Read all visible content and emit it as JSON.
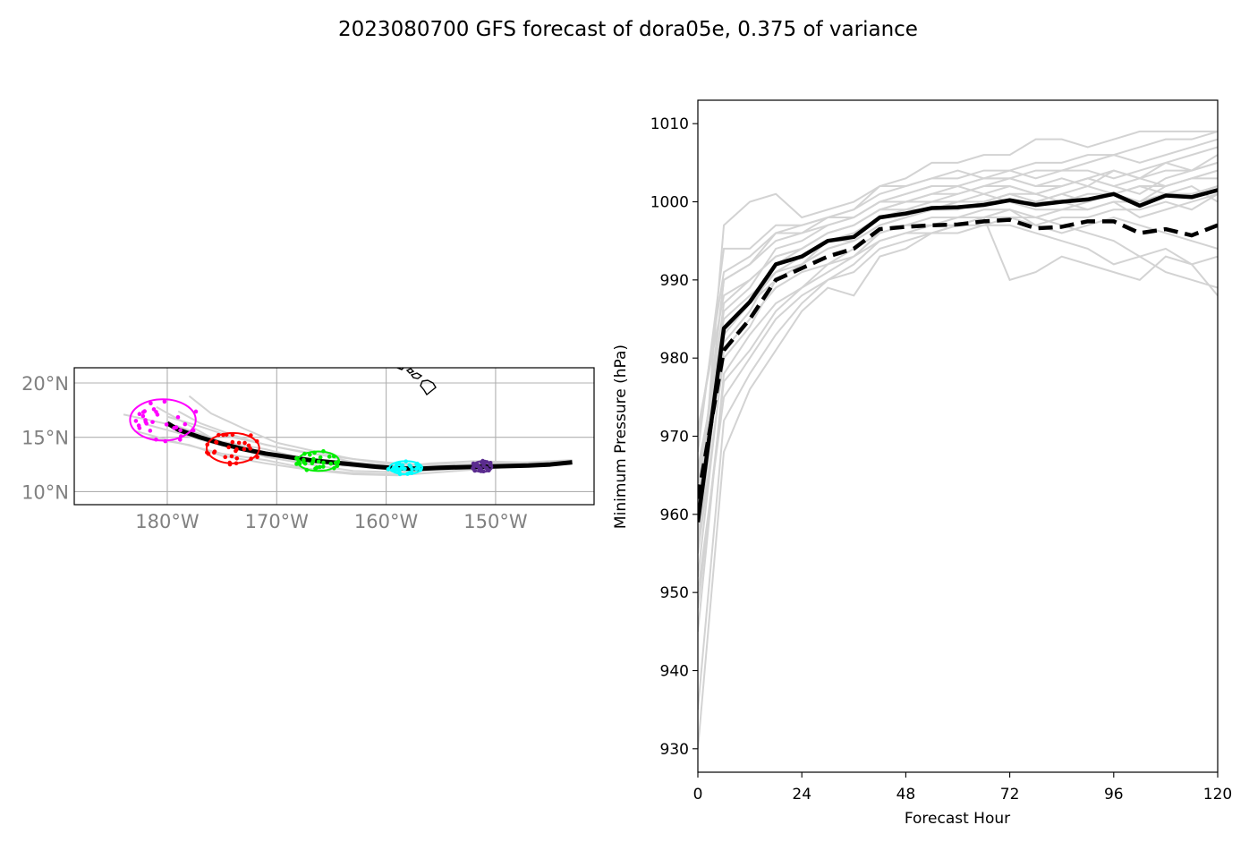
{
  "title": "2023080700 GFS forecast of dora05e, 0.375 of variance",
  "colors": {
    "ensemble": "#d3d3d3",
    "mean": "#000000",
    "grid": "#b0b0b0",
    "map_tick_text": "#808080",
    "coast": "#000000",
    "hour0": "#ff00ff",
    "hour24": "#ff0000",
    "hour48": "#00ee00",
    "hour72": "#00ffff",
    "hour96": "#5b2c8f"
  },
  "chart_data": [
    {
      "type": "scatter",
      "panel": "track map",
      "xlabel": "",
      "ylabel": "",
      "xlim": [
        -188.5,
        -141
      ],
      "ylim": [
        8.8,
        21.4
      ],
      "xticks": [
        -180,
        -170,
        -160,
        -150
      ],
      "xtick_labels": [
        "180°W",
        "170°W",
        "160°W",
        "150°W"
      ],
      "yticks": [
        10,
        15,
        20
      ],
      "ytick_labels": [
        "10°N",
        "15°N",
        "20°N"
      ],
      "grid": true,
      "mean_track": {
        "lon": [
          -143,
          -145,
          -147,
          -149,
          -151,
          -153,
          -155,
          -157,
          -159,
          -161,
          -163,
          -165,
          -167,
          -169,
          -171,
          -173,
          -175,
          -177,
          -179,
          -180
        ],
        "lat": [
          12.7,
          12.5,
          12.4,
          12.35,
          12.3,
          12.25,
          12.2,
          12.1,
          12.15,
          12.3,
          12.5,
          12.7,
          12.9,
          13.2,
          13.5,
          13.9,
          14.4,
          15.0,
          15.7,
          16.3
        ]
      },
      "ensemble_tracks": [
        {
          "lon": [
            -143,
            -147,
            -151,
            -155,
            -159,
            -163,
            -167,
            -171,
            -175,
            -179,
            -184
          ],
          "lat": [
            12.8,
            12.6,
            12.4,
            12.3,
            12.0,
            12.3,
            12.9,
            13.9,
            14.6,
            16.0,
            17.1
          ]
        },
        {
          "lon": [
            -143,
            -147,
            -151,
            -155,
            -159,
            -163,
            -167,
            -171,
            -175,
            -178,
            -181
          ],
          "lat": [
            12.7,
            12.5,
            12.2,
            12.0,
            11.8,
            11.9,
            12.5,
            13.2,
            14.4,
            16.1,
            17.8
          ]
        },
        {
          "lon": [
            -143,
            -147,
            -151,
            -155,
            -159,
            -163,
            -166,
            -170,
            -173,
            -176,
            -178
          ],
          "lat": [
            12.8,
            12.5,
            12.2,
            12.1,
            12.4,
            13.0,
            13.6,
            14.5,
            15.8,
            17.2,
            18.8
          ]
        },
        {
          "lon": [
            -143,
            -147,
            -151,
            -155,
            -159,
            -163,
            -167,
            -171,
            -175,
            -179,
            -183
          ],
          "lat": [
            12.6,
            12.4,
            12.3,
            12.2,
            11.6,
            11.7,
            12.1,
            12.9,
            13.5,
            14.5,
            15.6
          ]
        },
        {
          "lon": [
            -143,
            -147,
            -151,
            -155,
            -159,
            -163,
            -167,
            -171,
            -174,
            -177,
            -179
          ],
          "lat": [
            12.9,
            12.7,
            12.5,
            12.4,
            12.6,
            13.0,
            13.5,
            14.3,
            15.2,
            16.3,
            17.4
          ]
        },
        {
          "lon": [
            -143,
            -147,
            -151,
            -155,
            -159,
            -163,
            -167,
            -171,
            -175,
            -178,
            -182
          ],
          "lat": [
            12.7,
            12.4,
            12.1,
            11.8,
            11.5,
            11.6,
            12.0,
            12.6,
            13.3,
            14.3,
            15.0
          ]
        },
        {
          "lon": [
            -144,
            -148,
            -152,
            -156,
            -160,
            -164,
            -168,
            -172,
            -176,
            -179,
            -182
          ],
          "lat": [
            12.6,
            12.7,
            12.8,
            12.6,
            12.2,
            12.4,
            12.8,
            13.6,
            14.5,
            15.4,
            16.2
          ]
        },
        {
          "lon": [
            -143,
            -147,
            -151,
            -155,
            -159,
            -163,
            -166,
            -170,
            -174,
            -177,
            -180
          ],
          "lat": [
            12.8,
            12.6,
            12.6,
            12.5,
            12.3,
            12.7,
            13.4,
            14.1,
            15.0,
            16.0,
            16.9
          ]
        }
      ],
      "hour_markers": [
        {
          "hour": 0,
          "center": [
            -180.4,
            16.6
          ],
          "radius_deg": [
            3.0,
            1.9
          ]
        },
        {
          "hour": 24,
          "center": [
            -174.0,
            14.0
          ],
          "radius_deg": [
            2.4,
            1.4
          ]
        },
        {
          "hour": 48,
          "center": [
            -166.2,
            12.8
          ],
          "radius_deg": [
            1.9,
            0.9
          ]
        },
        {
          "hour": 72,
          "center": [
            -158.2,
            12.2
          ],
          "radius_deg": [
            1.5,
            0.6
          ]
        },
        {
          "hour": 96,
          "center": [
            -151.2,
            12.3
          ],
          "radius_deg": [
            0.9,
            0.5
          ]
        }
      ]
    },
    {
      "type": "line",
      "panel": "intensity",
      "xlabel": "Forecast Hour",
      "ylabel": "Minimum Pressure (hPa)",
      "xlim": [
        0,
        120
      ],
      "ylim": [
        927,
        1013
      ],
      "xticks": [
        0,
        24,
        48,
        72,
        96,
        120
      ],
      "yticks": [
        930,
        940,
        950,
        960,
        970,
        980,
        990,
        1000,
        1010
      ],
      "x": [
        0,
        6,
        12,
        18,
        24,
        30,
        36,
        42,
        48,
        54,
        60,
        66,
        72,
        78,
        84,
        90,
        96,
        102,
        108,
        114,
        120
      ],
      "series": [
        {
          "style": "mean-solid",
          "values": [
            959,
            983.8,
            987.2,
            992,
            993,
            995,
            995.5,
            998,
            998.5,
            999.2,
            999.3,
            999.6,
            1000.2,
            999.6,
            1000,
            1000.3,
            1001,
            999.5,
            1000.8,
            1000.6,
            1001.5
          ]
        },
        {
          "style": "mean-dashed",
          "values": [
            962,
            981,
            985,
            990,
            991.5,
            993,
            994,
            996.5,
            996.8,
            997,
            997.1,
            997.5,
            997.7,
            996.6,
            996.8,
            997.5,
            997.5,
            996,
            996.5,
            995.7,
            997
          ]
        },
        {
          "style": "member",
          "values": [
            955,
            980,
            984,
            990,
            992,
            994,
            995,
            997,
            998,
            999,
            1000,
            1000,
            1001,
            1000,
            1001,
            1002,
            1001,
            1000,
            1002,
            1003,
            1004
          ]
        },
        {
          "style": "member",
          "values": [
            958,
            982,
            986,
            992,
            994,
            996,
            997,
            999,
            1000,
            1001,
            1001,
            1002,
            1003,
            1002,
            1002,
            1003,
            1004,
            1003,
            1005,
            1006,
            1007
          ]
        },
        {
          "style": "member",
          "values": [
            962,
            990,
            992,
            995,
            996,
            997,
            998,
            1000,
            1001,
            1002,
            1002,
            1003,
            1003,
            1004,
            1004,
            1005,
            1006,
            1007,
            1008,
            1008,
            1009
          ]
        },
        {
          "style": "member",
          "values": [
            950,
            975,
            980,
            985,
            988,
            990,
            992,
            995,
            996,
            997,
            997,
            998,
            990,
            991,
            993,
            992,
            991,
            990,
            993,
            992,
            988
          ]
        },
        {
          "style": "member",
          "values": [
            965,
            985,
            988,
            991,
            992,
            994,
            995,
            997,
            998,
            999,
            999,
            1000,
            1001,
            1000,
            1000,
            999,
            1000,
            998,
            999,
            1000,
            1001
          ]
        },
        {
          "style": "member",
          "values": [
            968,
            994,
            994,
            997,
            997,
            998,
            998,
            1000,
            1000,
            1001,
            1002,
            1001,
            1002,
            1001,
            1002,
            1003,
            1002,
            1001,
            1003,
            1004,
            1005
          ]
        },
        {
          "style": "member",
          "values": [
            945,
            978,
            983,
            987,
            989,
            992,
            993,
            996,
            997,
            997,
            998,
            999,
            999,
            998,
            997,
            996,
            995,
            993,
            994,
            992,
            993
          ]
        },
        {
          "style": "member",
          "values": [
            971,
            988,
            990,
            993,
            994,
            996,
            997,
            999,
            999,
            1000,
            1000,
            1001,
            1000,
            1000,
            1001,
            1000,
            1001,
            1002,
            1002,
            1003,
            1003
          ]
        },
        {
          "style": "member",
          "values": [
            935,
            972,
            978,
            983,
            987,
            990,
            991,
            994,
            995,
            996,
            997,
            997,
            998,
            998,
            999,
            999,
            1000,
            1000,
            1001,
            1001,
            1002
          ]
        },
        {
          "style": "member",
          "values": [
            960,
            990,
            992,
            996,
            996,
            998,
            999,
            1001,
            1002,
            1003,
            1003,
            1004,
            1004,
            1003,
            1004,
            1004,
            1003,
            1004,
            1005,
            1004,
            1006
          ]
        },
        {
          "style": "member",
          "values": [
            952,
            981,
            985,
            989,
            991,
            992,
            994,
            996,
            997,
            998,
            998,
            998,
            999,
            997,
            996,
            997,
            998,
            997,
            996,
            995,
            994
          ]
        },
        {
          "style": "member",
          "values": [
            966,
            983,
            987,
            990,
            992,
            995,
            996,
            998,
            999,
            999,
            1000,
            1000,
            1001,
            1001,
            1000,
            1001,
            1001,
            1002,
            1001,
            1002,
            1000
          ]
        },
        {
          "style": "member",
          "values": [
            957,
            997,
            1000,
            1001,
            998,
            999,
            1000,
            1002,
            1003,
            1005,
            1005,
            1006,
            1006,
            1008,
            1008,
            1007,
            1008,
            1009,
            1009,
            1009,
            1009
          ]
        },
        {
          "style": "member",
          "values": [
            964,
            986,
            989,
            994,
            995,
            997,
            998,
            1000,
            1001,
            1002,
            1002,
            1003,
            1003,
            1002,
            1003,
            1002,
            1004,
            1003,
            1004,
            1004,
            1005
          ]
        },
        {
          "style": "member",
          "values": [
            948,
            977,
            981,
            986,
            989,
            991,
            993,
            995,
            996,
            996,
            997,
            998,
            998,
            997,
            998,
            998,
            999,
            999,
            1000,
            999,
            1001
          ]
        },
        {
          "style": "member",
          "values": [
            970,
            991,
            993,
            996,
            997,
            998,
            999,
            1002,
            1002,
            1003,
            1004,
            1003,
            1004,
            1005,
            1005,
            1006,
            1006,
            1005,
            1006,
            1007,
            1008
          ]
        },
        {
          "style": "member",
          "values": [
            930,
            968,
            976,
            981,
            986,
            989,
            988,
            993,
            994,
            996,
            996,
            997,
            997,
            996,
            995,
            994,
            992,
            993,
            991,
            990,
            989
          ]
        },
        {
          "style": "member",
          "values": [
            961,
            987,
            990,
            993,
            994,
            996,
            997,
            999,
            1000,
            1000,
            1001,
            1002,
            1002,
            1001,
            1002,
            1003,
            1002,
            1003,
            1002,
            1003,
            1004
          ]
        },
        {
          "style": "member",
          "values": [
            956,
            984,
            987,
            991,
            993,
            995,
            995,
            997,
            998,
            999,
            999,
            1000,
            1000,
            999,
            999,
            1000,
            1001,
            1000,
            1001,
            1001,
            1002
          ]
        }
      ]
    }
  ]
}
